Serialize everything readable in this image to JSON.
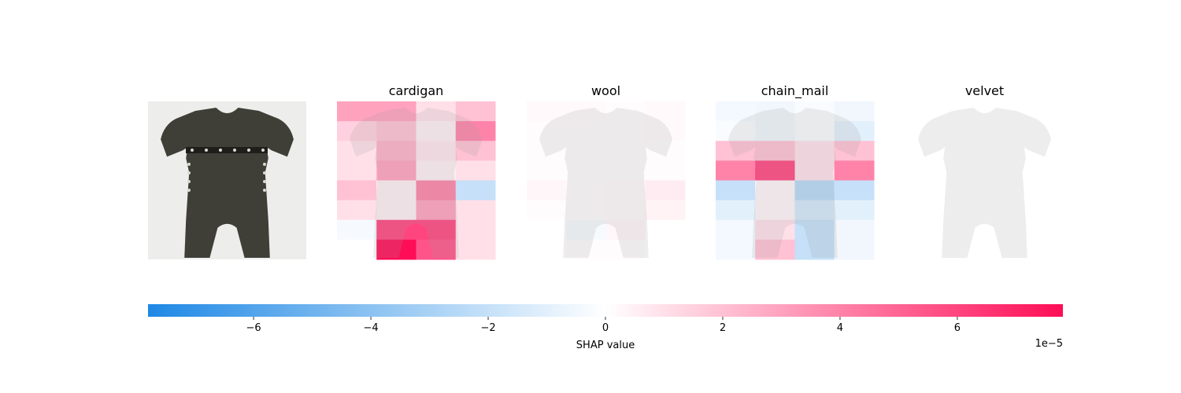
{
  "chart_data": {
    "type": "heatmap",
    "panels": [
      {
        "title": "",
        "kind": "original-image",
        "image_description_icon": "jumpsuit-photo"
      },
      {
        "title": "cardigan",
        "grid": [
          [
            3.0,
            3.0,
            1.0,
            2.0
          ],
          [
            1.5,
            2.0,
            0.5,
            4.0
          ],
          [
            1.0,
            2.5,
            0.8,
            2.0
          ],
          [
            1.0,
            3.0,
            0.5,
            1.0
          ],
          [
            2.0,
            0.5,
            4.0,
            -2.0
          ],
          [
            1.0,
            0.5,
            3.0,
            1.0
          ],
          [
            -0.3,
            6.0,
            6.0,
            1.0
          ],
          [
            0.0,
            7.8,
            5.5,
            1.0
          ]
        ]
      },
      {
        "title": "wool",
        "grid": [
          [
            0.2,
            0.2,
            0.1,
            0.2
          ],
          [
            0.1,
            0.1,
            0.1,
            0.2
          ],
          [
            0.1,
            0.1,
            0.1,
            0.1
          ],
          [
            0.1,
            0.1,
            0.1,
            0.1
          ],
          [
            0.3,
            0.1,
            0.2,
            0.6
          ],
          [
            0.1,
            0.1,
            0.2,
            0.4
          ],
          [
            0.0,
            -0.3,
            0.3,
            0.0
          ],
          [
            0.0,
            0.1,
            0.1,
            0.0
          ]
        ]
      },
      {
        "title": "chain_mail",
        "grid": [
          [
            -0.4,
            -0.5,
            -0.2,
            -0.5
          ],
          [
            -0.2,
            -0.5,
            -0.2,
            -1.0
          ],
          [
            2.0,
            2.0,
            1.0,
            2.0
          ],
          [
            4.0,
            6.0,
            1.0,
            4.0
          ],
          [
            -2.0,
            0.3,
            -2.5,
            -2.0
          ],
          [
            -1.0,
            0.3,
            -1.5,
            -1.0
          ],
          [
            -0.4,
            1.0,
            -2.0,
            -0.5
          ],
          [
            -0.4,
            2.0,
            -2.0,
            -0.5
          ]
        ]
      },
      {
        "title": "velvet",
        "grid": [
          [
            0.0,
            0.0,
            0.0,
            0.0
          ],
          [
            0.0,
            0.0,
            0.0,
            0.0
          ],
          [
            0.0,
            0.0,
            0.0,
            0.0
          ],
          [
            0.0,
            0.0,
            0.0,
            0.0
          ],
          [
            0.0,
            0.0,
            0.0,
            0.0
          ],
          [
            0.0,
            0.0,
            0.0,
            0.0
          ],
          [
            0.0,
            0.0,
            0.0,
            0.0
          ],
          [
            0.0,
            0.0,
            0.0,
            0.0
          ]
        ]
      }
    ],
    "value_unit": "1e-5",
    "colorbar": {
      "label": "SHAP value",
      "range": [
        -7.8,
        7.8
      ],
      "ticks": [
        -6,
        -4,
        -2,
        0,
        2,
        4,
        6
      ],
      "tick_labels": [
        "−6",
        "−4",
        "−2",
        "0",
        "2",
        "4",
        "6"
      ],
      "offset_label": "1e−5",
      "negative_color": "#1E88E5",
      "positive_color": "#FF0D57"
    }
  }
}
